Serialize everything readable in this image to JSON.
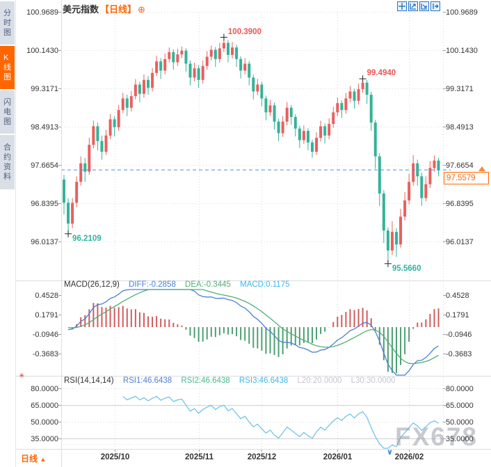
{
  "window": {
    "title_symbol": "美元指数",
    "title_period": "【日线】",
    "title_add_icon": "⊕"
  },
  "sidebar": {
    "items": [
      {
        "label": "分时图",
        "active": false
      },
      {
        "label": "K线图",
        "active": true
      },
      {
        "label": "闪电图",
        "active": false
      },
      {
        "label": "合约资料",
        "active": false
      }
    ]
  },
  "toolbar": {
    "icons": [
      "crosshair-move",
      "fit-region",
      "fit-scale",
      "pan-right"
    ]
  },
  "bottom": {
    "period_label": "日线",
    "period_arrow": "▲",
    "watermark": "FX678",
    "x_marker": "∨"
  },
  "colors": {
    "up": "#e8605e",
    "down": "#35b297",
    "ann_red": "#ef5350",
    "ann_green": "#2cb49e",
    "diff_line": "#4a7fd6",
    "dea_line": "#4fae74",
    "macd_text": "#3fb7e8",
    "rsi_line": "#70c3ea",
    "grid": "#d9d9d9",
    "divider": "#d9dde3",
    "dash_line": "#4a8fe2",
    "accent_orange": "#ff6600",
    "muted": "#c4c6ca"
  },
  "chart_data": {
    "type": "candlestick",
    "symbol": "美元指数",
    "period": "日线",
    "main": {
      "y_ticks": [
        100.9689,
        100.143,
        99.3171,
        98.4913,
        97.6654,
        96.8395,
        96.0137
      ],
      "current_price": 97.5579,
      "current_price_label": "97.5579",
      "annotations": [
        {
          "text": "100.3900",
          "price": 100.39,
          "index": 38,
          "color": "#ef5350",
          "placement": "above"
        },
        {
          "text": "99.4940",
          "price": 99.494,
          "index": 71,
          "color": "#ef5350",
          "placement": "above"
        },
        {
          "text": "96.2109",
          "price": 96.2109,
          "index": 1,
          "color": "#2cb49e",
          "placement": "below"
        },
        {
          "text": "95.5660",
          "price": 95.566,
          "index": 77,
          "color": "#2cb49e",
          "placement": "below"
        }
      ],
      "candles": [
        [
          97.35,
          97.45,
          96.6,
          96.85
        ],
        [
          96.85,
          96.95,
          96.2109,
          96.4
        ],
        [
          96.4,
          96.95,
          96.3,
          96.85
        ],
        [
          96.85,
          97.42,
          96.75,
          97.3
        ],
        [
          97.3,
          97.85,
          97.22,
          97.7
        ],
        [
          97.7,
          97.82,
          97.3,
          97.52
        ],
        [
          97.52,
          98.25,
          97.45,
          98.1
        ],
        [
          98.1,
          98.62,
          98.02,
          98.5
        ],
        [
          98.5,
          98.58,
          97.98,
          98.18
        ],
        [
          98.18,
          98.3,
          97.78,
          97.95
        ],
        [
          97.95,
          98.42,
          97.88,
          98.3
        ],
        [
          98.3,
          98.76,
          98.22,
          98.65
        ],
        [
          98.65,
          98.72,
          98.28,
          98.48
        ],
        [
          98.48,
          98.96,
          98.4,
          98.85
        ],
        [
          98.85,
          99.22,
          98.78,
          99.1
        ],
        [
          99.1,
          99.18,
          98.72,
          98.9
        ],
        [
          98.9,
          99.26,
          98.82,
          99.15
        ],
        [
          99.15,
          99.52,
          99.08,
          99.4
        ],
        [
          99.4,
          99.46,
          99.02,
          99.2
        ],
        [
          99.2,
          99.62,
          99.12,
          99.5
        ],
        [
          99.5,
          99.58,
          99.18,
          99.33
        ],
        [
          99.33,
          99.76,
          99.25,
          99.65
        ],
        [
          99.65,
          100.02,
          99.58,
          99.9
        ],
        [
          99.9,
          99.97,
          99.52,
          99.7
        ],
        [
          99.7,
          100.07,
          99.62,
          99.95
        ],
        [
          99.95,
          100.2,
          99.88,
          100.1
        ],
        [
          100.1,
          100.16,
          99.72,
          99.88
        ],
        [
          99.88,
          100.17,
          99.8,
          100.05
        ],
        [
          100.05,
          100.22,
          99.97,
          100.13
        ],
        [
          100.13,
          100.18,
          99.68,
          99.85
        ],
        [
          99.85,
          99.92,
          99.38,
          99.55
        ],
        [
          99.55,
          99.87,
          99.47,
          99.75
        ],
        [
          99.75,
          99.82,
          99.33,
          99.5
        ],
        [
          99.5,
          99.92,
          99.42,
          99.8
        ],
        [
          99.8,
          100.12,
          99.72,
          100.0
        ],
        [
          100.0,
          100.24,
          99.92,
          100.15
        ],
        [
          100.15,
          100.21,
          99.78,
          99.95
        ],
        [
          99.95,
          100.3,
          99.87,
          100.18
        ],
        [
          100.18,
          100.39,
          100.1,
          100.3
        ],
        [
          100.3,
          100.36,
          99.88,
          100.04
        ],
        [
          100.04,
          100.32,
          99.96,
          100.2
        ],
        [
          100.2,
          100.26,
          99.78,
          99.95
        ],
        [
          99.95,
          100.01,
          99.53,
          99.7
        ],
        [
          99.7,
          99.97,
          99.62,
          99.85
        ],
        [
          99.85,
          99.91,
          99.38,
          99.55
        ],
        [
          99.55,
          99.61,
          99.08,
          99.25
        ],
        [
          99.25,
          99.52,
          99.17,
          99.4
        ],
        [
          99.4,
          99.46,
          98.93,
          99.1
        ],
        [
          99.1,
          99.16,
          98.63,
          98.8
        ],
        [
          98.8,
          99.07,
          98.72,
          98.95
        ],
        [
          98.95,
          99.01,
          98.43,
          98.6
        ],
        [
          98.6,
          98.66,
          98.18,
          98.35
        ],
        [
          98.35,
          98.72,
          98.27,
          98.6
        ],
        [
          98.6,
          99.02,
          98.52,
          98.9
        ],
        [
          98.9,
          98.96,
          98.53,
          98.7
        ],
        [
          98.7,
          98.76,
          98.28,
          98.45
        ],
        [
          98.45,
          98.51,
          98.03,
          98.2
        ],
        [
          98.2,
          98.52,
          98.12,
          98.4
        ],
        [
          98.4,
          98.46,
          97.98,
          98.15
        ],
        [
          98.15,
          98.21,
          97.82,
          97.95
        ],
        [
          97.95,
          98.37,
          97.88,
          98.25
        ],
        [
          98.25,
          98.62,
          98.17,
          98.5
        ],
        [
          98.5,
          98.56,
          98.13,
          98.3
        ],
        [
          98.3,
          98.67,
          98.22,
          98.55
        ],
        [
          98.55,
          98.92,
          98.47,
          98.8
        ],
        [
          98.8,
          99.12,
          98.72,
          99.0
        ],
        [
          99.0,
          99.06,
          98.68,
          98.85
        ],
        [
          98.85,
          99.22,
          98.77,
          99.1
        ],
        [
          99.1,
          99.37,
          99.02,
          99.25
        ],
        [
          99.25,
          99.31,
          98.88,
          99.05
        ],
        [
          99.05,
          99.42,
          98.97,
          99.3
        ],
        [
          99.3,
          99.494,
          99.22,
          99.44
        ],
        [
          99.44,
          99.5,
          98.98,
          99.18
        ],
        [
          99.18,
          99.24,
          98.4,
          98.58
        ],
        [
          98.58,
          98.64,
          97.58,
          97.85
        ],
        [
          97.85,
          97.92,
          96.78,
          97.05
        ],
        [
          97.05,
          97.12,
          95.98,
          96.25
        ],
        [
          96.25,
          96.32,
          95.566,
          95.82
        ],
        [
          95.82,
          96.45,
          95.72,
          96.22
        ],
        [
          96.22,
          96.3,
          95.68,
          95.95
        ],
        [
          95.95,
          96.72,
          95.88,
          96.55
        ],
        [
          96.55,
          97.08,
          96.47,
          96.9
        ],
        [
          96.9,
          97.47,
          96.82,
          97.3
        ],
        [
          97.3,
          97.88,
          97.22,
          97.7
        ],
        [
          97.7,
          97.78,
          97.22,
          97.42
        ],
        [
          97.42,
          97.5,
          96.78,
          96.95
        ],
        [
          96.95,
          97.42,
          96.88,
          97.25
        ],
        [
          97.25,
          97.75,
          97.17,
          97.6
        ],
        [
          97.6,
          97.87,
          97.52,
          97.76
        ],
        [
          97.76,
          97.82,
          97.42,
          97.5579
        ]
      ]
    },
    "macd": {
      "header": {
        "title": "MACD(26,12,9)",
        "diff": "DIFF:-0.2858",
        "dea": "DEA:-0.3445",
        "macd": "MACD:0.1175"
      },
      "params": [
        26,
        12,
        9
      ],
      "y_ticks": [
        0.4528,
        0.1791,
        -0.0946,
        -0.3683
      ]
    },
    "rsi": {
      "header": {
        "title": "RSI(14,14,14)",
        "r1": "RSI1:46.6438",
        "r2": "RSI2:46.6438",
        "r3": "RSI3:46.6438",
        "l20": "L20:20.0000",
        "l30": "L30:30.0000"
      },
      "params": [
        14,
        14,
        14
      ],
      "y_ticks": [
        80.0,
        65.0,
        50.0,
        35.0
      ]
    },
    "x_axis": {
      "months": [
        {
          "label": "2025/10",
          "index": 12
        },
        {
          "label": "2025/11",
          "index": 32
        },
        {
          "label": "2025/12",
          "index": 47
        },
        {
          "label": "2026/01",
          "index": 65
        },
        {
          "label": "2026/02",
          "index": 82
        }
      ]
    }
  }
}
